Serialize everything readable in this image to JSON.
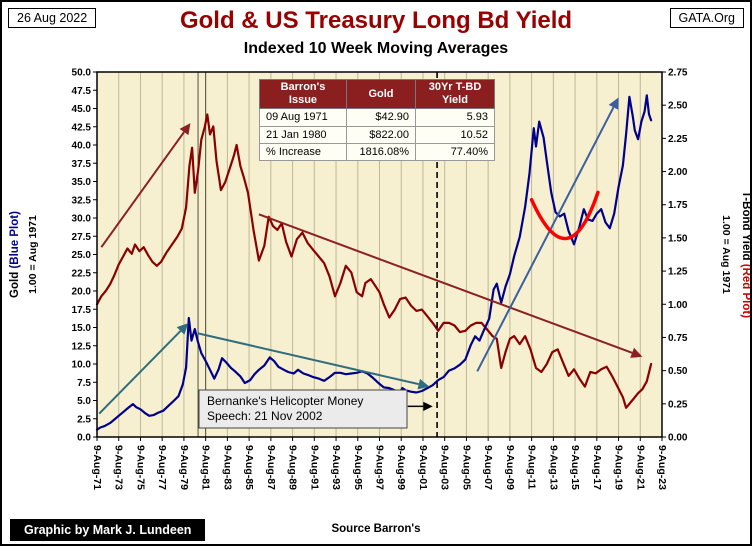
{
  "header": {
    "date_box": "26 Aug 2022",
    "org_box": "GATA.Org"
  },
  "table": {
    "headers": [
      "Barron's\nIssue",
      "Gold",
      "30Yr T-BD\nYield"
    ],
    "rows": [
      [
        "09 Aug 1971",
        "$42.90",
        "5.93"
      ],
      [
        "21 Jan 1980",
        "$822.00",
        "10.52"
      ],
      [
        "% Increase",
        "1816.08%",
        "77.40%"
      ]
    ]
  },
  "axis_titles": {
    "left_main": "Gold",
    "left_paren": "(Blue Plot)",
    "left_sub": "1.00 = Aug 1971",
    "right_main": "T-Bond Yield",
    "right_paren": "(Red Plot)",
    "right_sub": "1.00 = Aug 1971"
  },
  "footer": {
    "credit": "Graphic by Mark J. Lundeen",
    "source": "Source Barron's"
  },
  "chart_data": {
    "type": "line",
    "title": "Gold & US Treasury Long Bd Yield",
    "subtitle": "Indexed 10 Week Moving Averages",
    "x_range": [
      1971.6,
      2023.6
    ],
    "x_tick_step": 2,
    "x_tick_labels": [
      "9-Aug-71",
      "9-Aug-73",
      "9-Aug-75",
      "9-Aug-77",
      "9-Aug-79",
      "9-Aug-81",
      "9-Aug-83",
      "9-Aug-85",
      "9-Aug-87",
      "9-Aug-89",
      "9-Aug-91",
      "9-Aug-93",
      "9-Aug-95",
      "9-Aug-97",
      "9-Aug-99",
      "9-Aug-01",
      "9-Aug-03",
      "9-Aug-05",
      "9-Aug-07",
      "9-Aug-09",
      "9-Aug-11",
      "9-Aug-13",
      "9-Aug-15",
      "9-Aug-17",
      "9-Aug-19",
      "9-Aug-21",
      "9-Aug-23"
    ],
    "left_axis": {
      "label": "Gold (Blue Plot), 1.00 = Aug 1971",
      "range": [
        0,
        50
      ],
      "tick_step": 2.5,
      "tick_labels": [
        "0.0",
        "2.5",
        "5.0",
        "7.5",
        "10.0",
        "12.5",
        "15.0",
        "17.5",
        "20.0",
        "22.5",
        "25.0",
        "27.5",
        "30.0",
        "32.5",
        "35.0",
        "37.5",
        "40.0",
        "42.5",
        "45.0",
        "47.5",
        "50.0"
      ]
    },
    "right_axis": {
      "label": "T-Bond Yield (Red Plot), 1.00 = Aug 1971",
      "range": [
        0,
        2.75
      ],
      "tick_step": 0.25,
      "tick_labels": [
        "0.00",
        "0.25",
        "0.50",
        "0.75",
        "1.00",
        "1.25",
        "1.50",
        "1.75",
        "2.00",
        "2.25",
        "2.50",
        "2.75"
      ]
    },
    "series": [
      {
        "name": "30Yr T-Bond Yield indexed (red plot)",
        "axis": "right",
        "color": "#8B0000",
        "points": [
          [
            1971.6,
            1.0
          ],
          [
            1972.0,
            1.06
          ],
          [
            1972.4,
            1.1
          ],
          [
            1972.8,
            1.15
          ],
          [
            1973.2,
            1.22
          ],
          [
            1973.6,
            1.3
          ],
          [
            1974.0,
            1.36
          ],
          [
            1974.4,
            1.42
          ],
          [
            1974.8,
            1.38
          ],
          [
            1975.1,
            1.45
          ],
          [
            1975.5,
            1.4
          ],
          [
            1975.9,
            1.43
          ],
          [
            1976.3,
            1.37
          ],
          [
            1976.7,
            1.32
          ],
          [
            1977.1,
            1.29
          ],
          [
            1977.5,
            1.32
          ],
          [
            1978.0,
            1.39
          ],
          [
            1978.5,
            1.45
          ],
          [
            1979.0,
            1.51
          ],
          [
            1979.4,
            1.57
          ],
          [
            1979.8,
            1.73
          ],
          [
            1980.1,
            2.04
          ],
          [
            1980.35,
            2.18
          ],
          [
            1980.6,
            1.84
          ],
          [
            1980.9,
            2.0
          ],
          [
            1981.2,
            2.24
          ],
          [
            1981.5,
            2.33
          ],
          [
            1981.75,
            2.43
          ],
          [
            1982.0,
            2.28
          ],
          [
            1982.3,
            2.34
          ],
          [
            1982.6,
            2.08
          ],
          [
            1983.0,
            1.86
          ],
          [
            1983.4,
            1.92
          ],
          [
            1983.8,
            2.02
          ],
          [
            1984.2,
            2.12
          ],
          [
            1984.45,
            2.2
          ],
          [
            1984.8,
            2.04
          ],
          [
            1985.1,
            1.96
          ],
          [
            1985.5,
            1.84
          ],
          [
            1986.0,
            1.56
          ],
          [
            1986.5,
            1.33
          ],
          [
            1987.0,
            1.44
          ],
          [
            1987.4,
            1.66
          ],
          [
            1987.8,
            1.59
          ],
          [
            1988.2,
            1.56
          ],
          [
            1988.6,
            1.61
          ],
          [
            1989.0,
            1.47
          ],
          [
            1989.5,
            1.36
          ],
          [
            1990.0,
            1.49
          ],
          [
            1990.5,
            1.54
          ],
          [
            1991.0,
            1.46
          ],
          [
            1991.5,
            1.41
          ],
          [
            1992.0,
            1.36
          ],
          [
            1992.5,
            1.31
          ],
          [
            1993.0,
            1.21
          ],
          [
            1993.5,
            1.06
          ],
          [
            1994.0,
            1.16
          ],
          [
            1994.5,
            1.29
          ],
          [
            1995.0,
            1.24
          ],
          [
            1995.5,
            1.09
          ],
          [
            1996.0,
            1.06
          ],
          [
            1996.3,
            1.16
          ],
          [
            1996.8,
            1.19
          ],
          [
            1997.2,
            1.14
          ],
          [
            1997.6,
            1.09
          ],
          [
            1998.0,
            1.0
          ],
          [
            1998.5,
            0.9
          ],
          [
            1999.0,
            0.96
          ],
          [
            1999.5,
            1.04
          ],
          [
            2000.0,
            1.05
          ],
          [
            2000.5,
            0.99
          ],
          [
            2001.0,
            0.95
          ],
          [
            2001.5,
            0.96
          ],
          [
            2002.0,
            0.91
          ],
          [
            2002.5,
            0.86
          ],
          [
            2003.0,
            0.8
          ],
          [
            2003.5,
            0.86
          ],
          [
            2004.0,
            0.86
          ],
          [
            2004.5,
            0.84
          ],
          [
            2005.0,
            0.79
          ],
          [
            2005.5,
            0.8
          ],
          [
            2006.0,
            0.84
          ],
          [
            2006.5,
            0.86
          ],
          [
            2007.0,
            0.86
          ],
          [
            2007.5,
            0.81
          ],
          [
            2008.0,
            0.76
          ],
          [
            2008.4,
            0.74
          ],
          [
            2008.8,
            0.52
          ],
          [
            2009.2,
            0.64
          ],
          [
            2009.6,
            0.74
          ],
          [
            2010.0,
            0.76
          ],
          [
            2010.5,
            0.7
          ],
          [
            2011.0,
            0.76
          ],
          [
            2011.5,
            0.66
          ],
          [
            2012.0,
            0.52
          ],
          [
            2012.5,
            0.49
          ],
          [
            2013.0,
            0.55
          ],
          [
            2013.5,
            0.64
          ],
          [
            2014.0,
            0.66
          ],
          [
            2014.5,
            0.56
          ],
          [
            2015.0,
            0.46
          ],
          [
            2015.5,
            0.51
          ],
          [
            2016.0,
            0.44
          ],
          [
            2016.5,
            0.38
          ],
          [
            2017.0,
            0.49
          ],
          [
            2017.5,
            0.48
          ],
          [
            2018.0,
            0.51
          ],
          [
            2018.5,
            0.53
          ],
          [
            2019.0,
            0.46
          ],
          [
            2019.5,
            0.38
          ],
          [
            2020.0,
            0.3
          ],
          [
            2020.3,
            0.22
          ],
          [
            2020.7,
            0.26
          ],
          [
            2021.0,
            0.29
          ],
          [
            2021.4,
            0.33
          ],
          [
            2021.8,
            0.36
          ],
          [
            2022.2,
            0.42
          ],
          [
            2022.6,
            0.55
          ]
        ]
      },
      {
        "name": "Gold indexed (blue plot)",
        "axis": "left",
        "color": "#00008B",
        "points": [
          [
            1971.6,
            1.0
          ],
          [
            1971.9,
            1.3
          ],
          [
            1972.3,
            1.5
          ],
          [
            1972.8,
            1.9
          ],
          [
            1973.2,
            2.4
          ],
          [
            1973.6,
            2.9
          ],
          [
            1974.0,
            3.4
          ],
          [
            1974.4,
            3.9
          ],
          [
            1974.9,
            4.5
          ],
          [
            1975.2,
            4.1
          ],
          [
            1975.6,
            3.8
          ],
          [
            1976.0,
            3.3
          ],
          [
            1976.4,
            2.9
          ],
          [
            1976.8,
            3.0
          ],
          [
            1977.2,
            3.3
          ],
          [
            1977.7,
            3.6
          ],
          [
            1978.2,
            4.3
          ],
          [
            1978.7,
            5.0
          ],
          [
            1979.1,
            5.6
          ],
          [
            1979.5,
            7.2
          ],
          [
            1979.8,
            9.5
          ],
          [
            1980.05,
            16.3
          ],
          [
            1980.3,
            13.2
          ],
          [
            1980.6,
            14.8
          ],
          [
            1980.9,
            13.0
          ],
          [
            1981.2,
            11.5
          ],
          [
            1981.6,
            10.4
          ],
          [
            1982.0,
            9.2
          ],
          [
            1982.4,
            8.0
          ],
          [
            1982.8,
            9.3
          ],
          [
            1983.1,
            10.8
          ],
          [
            1983.5,
            10.2
          ],
          [
            1983.9,
            9.5
          ],
          [
            1984.3,
            9.0
          ],
          [
            1984.8,
            8.3
          ],
          [
            1985.2,
            7.4
          ],
          [
            1985.7,
            7.8
          ],
          [
            1986.1,
            8.6
          ],
          [
            1986.5,
            9.2
          ],
          [
            1987.0,
            9.8
          ],
          [
            1987.5,
            10.9
          ],
          [
            1987.9,
            10.4
          ],
          [
            1988.3,
            9.6
          ],
          [
            1988.8,
            9.2
          ],
          [
            1989.2,
            8.9
          ],
          [
            1989.7,
            8.7
          ],
          [
            1990.1,
            9.2
          ],
          [
            1990.6,
            8.7
          ],
          [
            1991.0,
            8.5
          ],
          [
            1991.5,
            8.2
          ],
          [
            1992.0,
            8.0
          ],
          [
            1992.5,
            7.7
          ],
          [
            1993.0,
            8.2
          ],
          [
            1993.5,
            8.8
          ],
          [
            1994.0,
            8.8
          ],
          [
            1994.5,
            8.6
          ],
          [
            1995.0,
            8.7
          ],
          [
            1995.5,
            8.8
          ],
          [
            1996.0,
            9.0
          ],
          [
            1996.5,
            8.7
          ],
          [
            1997.0,
            8.1
          ],
          [
            1997.5,
            7.4
          ],
          [
            1998.0,
            6.8
          ],
          [
            1998.5,
            6.7
          ],
          [
            1999.0,
            6.4
          ],
          [
            1999.4,
            5.9
          ],
          [
            1999.7,
            6.7
          ],
          [
            2000.0,
            6.4
          ],
          [
            2000.5,
            6.2
          ],
          [
            2001.0,
            6.1
          ],
          [
            2001.5,
            6.3
          ],
          [
            2002.0,
            6.7
          ],
          [
            2002.5,
            7.1
          ],
          [
            2003.0,
            7.8
          ],
          [
            2003.5,
            8.2
          ],
          [
            2004.0,
            9.1
          ],
          [
            2004.5,
            9.4
          ],
          [
            2005.0,
            9.9
          ],
          [
            2005.5,
            10.6
          ],
          [
            2006.0,
            12.6
          ],
          [
            2006.4,
            13.8
          ],
          [
            2006.8,
            13.2
          ],
          [
            2007.2,
            14.6
          ],
          [
            2007.7,
            16.2
          ],
          [
            2008.1,
            20.2
          ],
          [
            2008.4,
            21.0
          ],
          [
            2008.8,
            18.4
          ],
          [
            2009.2,
            20.6
          ],
          [
            2009.6,
            22.3
          ],
          [
            2010.0,
            24.8
          ],
          [
            2010.5,
            27.4
          ],
          [
            2011.0,
            31.5
          ],
          [
            2011.4,
            36.0
          ],
          [
            2011.8,
            42.3
          ],
          [
            2012.0,
            39.8
          ],
          [
            2012.3,
            43.2
          ],
          [
            2012.7,
            41.0
          ],
          [
            2013.0,
            37.8
          ],
          [
            2013.4,
            33.5
          ],
          [
            2013.8,
            30.8
          ],
          [
            2014.2,
            30.2
          ],
          [
            2014.6,
            30.6
          ],
          [
            2015.0,
            28.2
          ],
          [
            2015.5,
            26.4
          ],
          [
            2016.0,
            28.8
          ],
          [
            2016.4,
            31.2
          ],
          [
            2016.8,
            29.8
          ],
          [
            2017.2,
            29.6
          ],
          [
            2017.6,
            30.6
          ],
          [
            2018.0,
            31.2
          ],
          [
            2018.4,
            29.4
          ],
          [
            2018.8,
            28.6
          ],
          [
            2019.2,
            30.6
          ],
          [
            2019.6,
            34.2
          ],
          [
            2020.0,
            37.2
          ],
          [
            2020.3,
            41.5
          ],
          [
            2020.6,
            46.6
          ],
          [
            2020.9,
            44.0
          ],
          [
            2021.1,
            42.0
          ],
          [
            2021.4,
            40.8
          ],
          [
            2021.7,
            43.2
          ],
          [
            2022.0,
            44.6
          ],
          [
            2022.2,
            46.8
          ],
          [
            2022.4,
            44.2
          ],
          [
            2022.6,
            43.4
          ]
        ]
      }
    ],
    "annotation": {
      "line1": "Bernanke's Helicopter Money",
      "line2": "Speech: 21 Nov 2002",
      "x_year": 2002.9
    },
    "arrows": [
      {
        "from": [
          1972.0,
          26.0
        ],
        "to": [
          1980.2,
          43.0
        ],
        "color": "#8B2020",
        "width": 2
      },
      {
        "from": [
          1986.5,
          30.5
        ],
        "to": [
          2021.8,
          11.0
        ],
        "color": "#8B2020",
        "width": 2
      },
      {
        "from": [
          1971.8,
          3.2
        ],
        "to": [
          1980.0,
          15.6
        ],
        "color": "#2F6D7E",
        "width": 2
      },
      {
        "from": [
          1980.9,
          14.2
        ],
        "to": [
          2002.2,
          6.9
        ],
        "color": "#2F6D7E",
        "width": 2
      },
      {
        "from": [
          2006.6,
          9.0
        ],
        "to": [
          2019.6,
          46.5
        ],
        "color": "#3C5FA0",
        "width": 2
      },
      {
        "from": [
          2000.2,
          4.2
        ],
        "to": [
          2002.5,
          4.2
        ],
        "color": "#000000",
        "width": 1.5
      }
    ],
    "smile": {
      "points": [
        [
          2011.6,
          32.5
        ],
        [
          2014.8,
          27.2
        ],
        [
          2017.7,
          33.5
        ]
      ],
      "color": "#FF0000",
      "width": 3.5
    },
    "ref_lines": [
      1980.9,
      1981.6
    ],
    "colors": {
      "plot_bg": "#F6F0D0",
      "grid": "#BFB896",
      "title": "#990000",
      "table_header_bg": "#8B1F1F",
      "annotation_bg": "#EBEBEB"
    }
  }
}
